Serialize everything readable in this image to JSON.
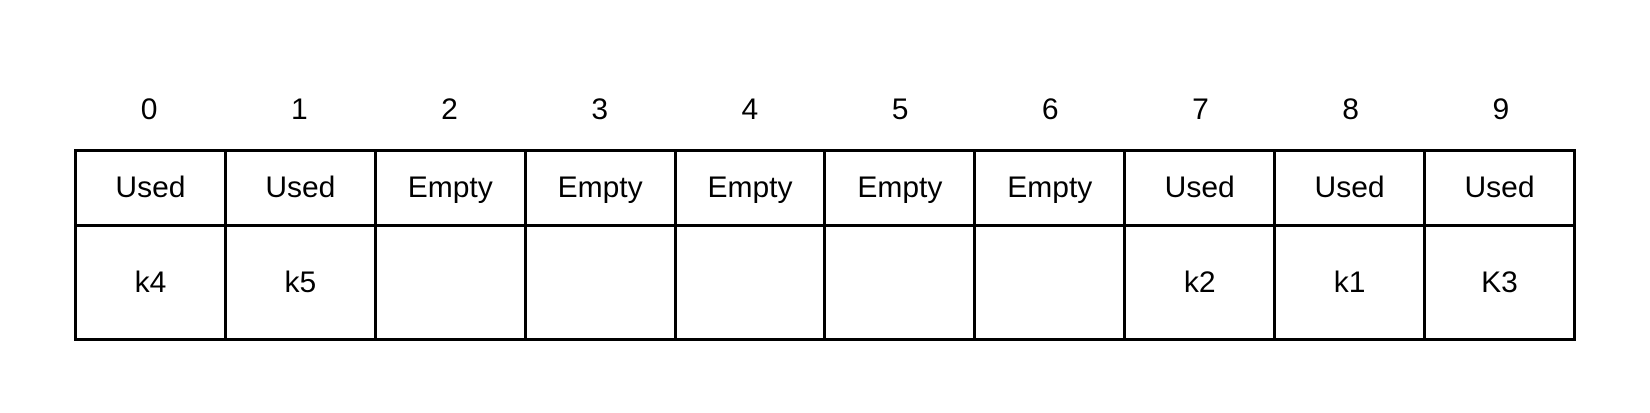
{
  "slots": [
    {
      "index": "0",
      "status": "Used",
      "key": "k4"
    },
    {
      "index": "1",
      "status": "Used",
      "key": "k5"
    },
    {
      "index": "2",
      "status": "Empty",
      "key": ""
    },
    {
      "index": "3",
      "status": "Empty",
      "key": ""
    },
    {
      "index": "4",
      "status": "Empty",
      "key": ""
    },
    {
      "index": "5",
      "status": "Empty",
      "key": ""
    },
    {
      "index": "6",
      "status": "Empty",
      "key": ""
    },
    {
      "index": "7",
      "status": "Used",
      "key": "k2"
    },
    {
      "index": "8",
      "status": "Used",
      "key": "k1"
    },
    {
      "index": "9",
      "status": "Used",
      "key": "K3"
    }
  ]
}
